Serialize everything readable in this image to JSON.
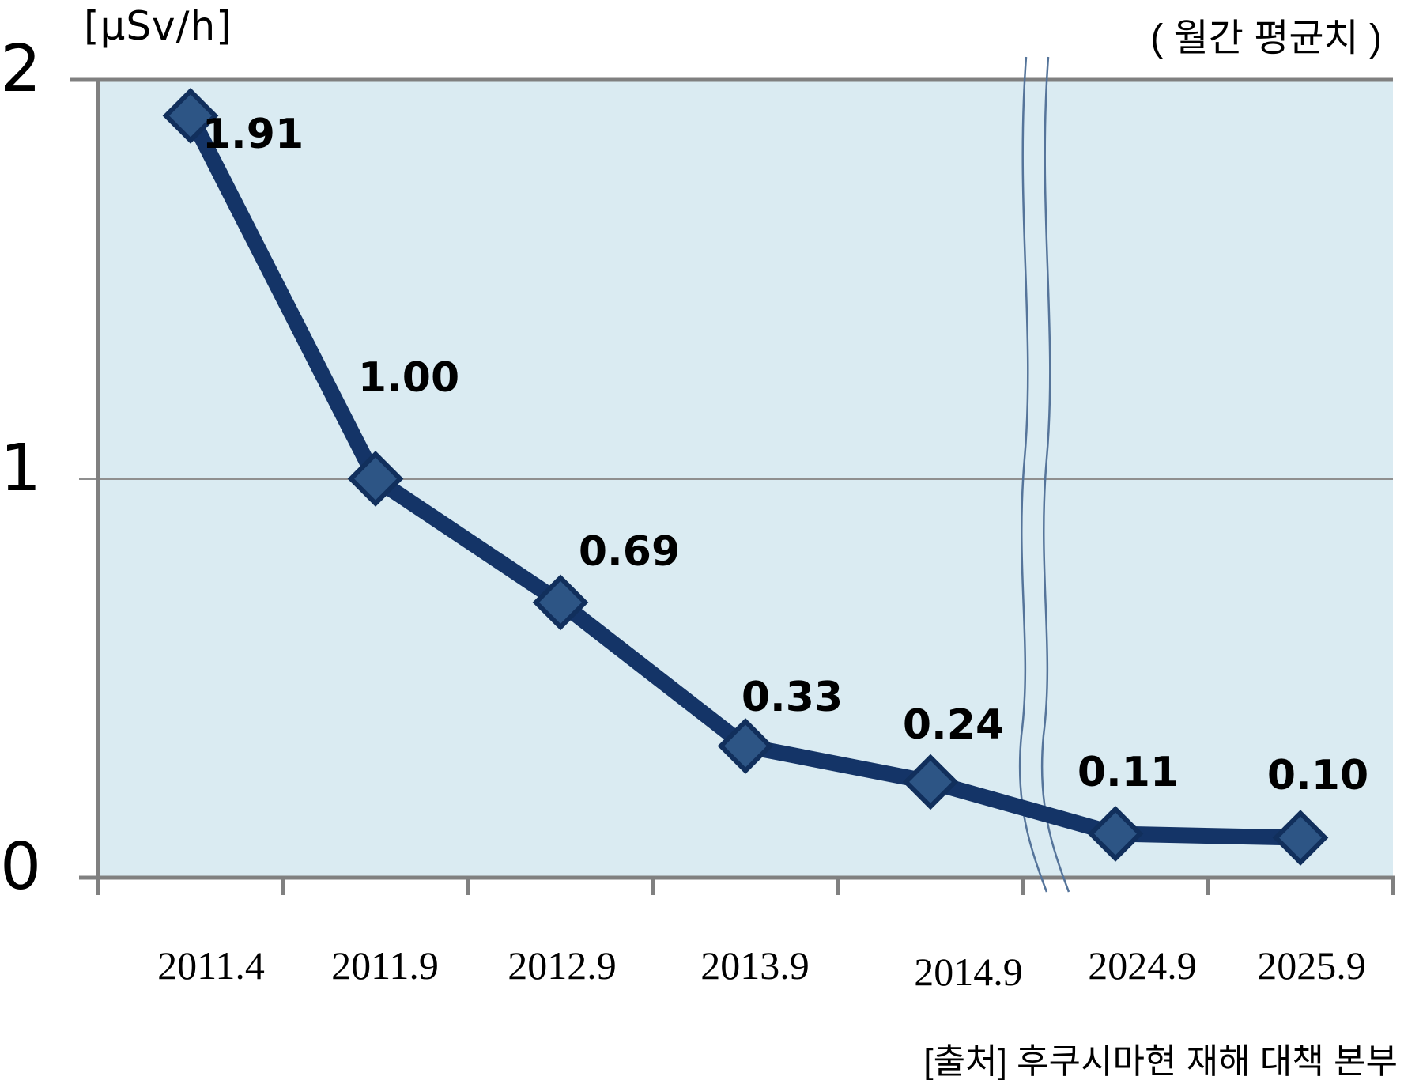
{
  "chart_data": {
    "type": "line",
    "unit_label": "[μSv/h]",
    "subtitle": "( 월간 평균치 )",
    "source_note": "[출처] 후쿠시마현 재해 대책 본부",
    "categories": [
      "2011.4",
      "2011.9",
      "2012.9",
      "2013.9",
      "2014.9",
      "2024.9",
      "2025.9"
    ],
    "values": [
      1.91,
      1.0,
      0.69,
      0.33,
      0.24,
      0.11,
      0.1
    ],
    "point_labels": [
      "1.91",
      "1.00",
      "0.69",
      "0.33",
      "0.24",
      "0.11",
      "0.10"
    ],
    "y_axis": {
      "range": [
        0,
        2
      ],
      "ticks": [
        2,
        1,
        0
      ],
      "tick_labels": [
        "2",
        "1",
        "0"
      ]
    },
    "grid": {
      "horizontal_at": [
        1
      ]
    },
    "axis_break": {
      "present": true,
      "between": [
        "2014.9",
        "2024.9"
      ]
    },
    "legend": {
      "present": false
    },
    "marker": "diamond",
    "colors": {
      "plot_bg": "#daebf2",
      "line": "#143467",
      "marker_fill": "#2d5585",
      "marker_stroke": "#112f5c",
      "axis": "#808080",
      "gridline": "#8f8f8f",
      "break_mark": "#55749a",
      "text": "#000000"
    }
  }
}
